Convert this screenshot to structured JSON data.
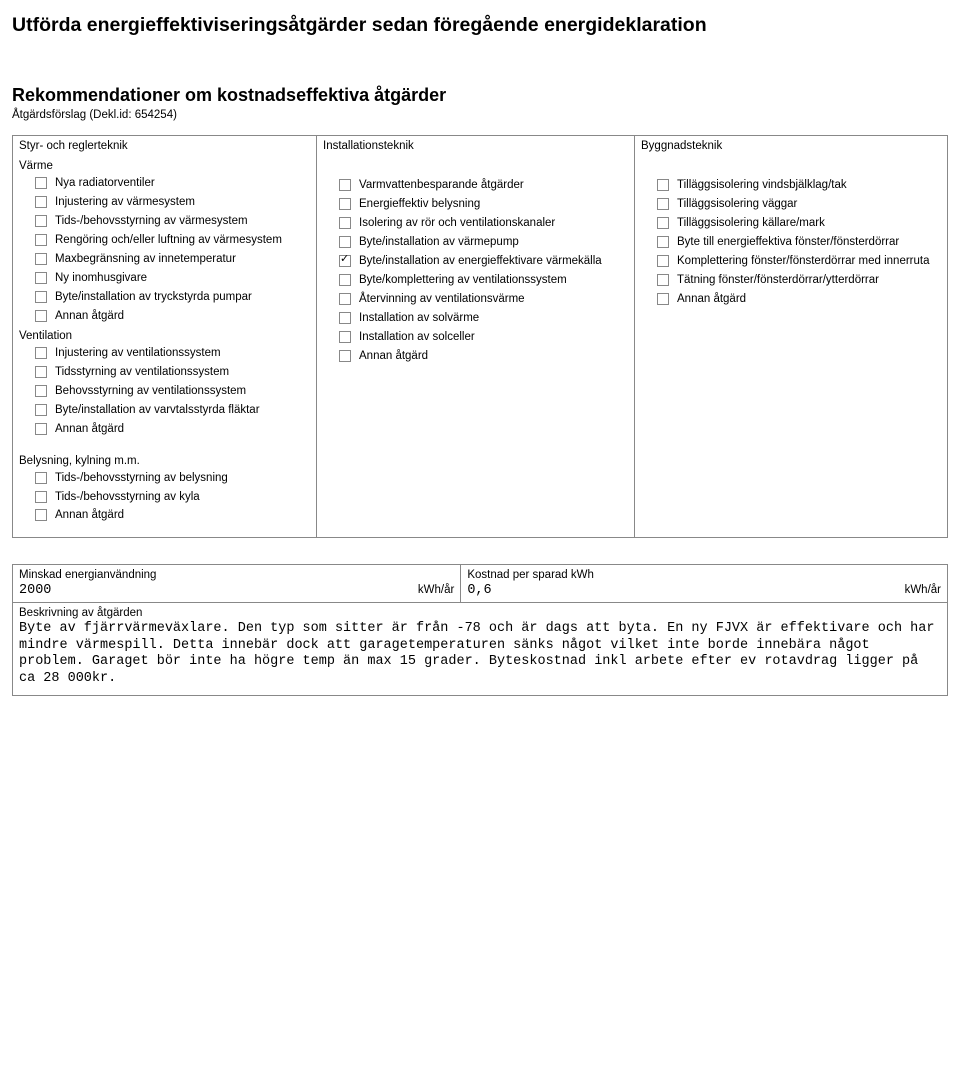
{
  "heading1": "Utförda energieffektiviseringsåtgärder sedan föregående energideklaration",
  "heading2": "Rekommendationer om kostnadseffektiva åtgärder",
  "forslag": "Åtgärdsförslag (Dekl.id: 654254)",
  "col1": {
    "title": "Styr- och reglerteknik",
    "group1_title": "Värme",
    "group1": [
      {
        "label": "Nya radiatorventiler",
        "checked": false
      },
      {
        "label": "Injustering av värmesystem",
        "checked": false
      },
      {
        "label": "Tids-/behovsstyrning av värmesystem",
        "checked": false
      },
      {
        "label": "Rengöring och/eller luftning av värmesystem",
        "checked": false
      },
      {
        "label": "Maxbegränsning av innetemperatur",
        "checked": false
      },
      {
        "label": "Ny inomhusgivare",
        "checked": false
      },
      {
        "label": "Byte/installation av tryckstyrda pumpar",
        "checked": false
      },
      {
        "label": "Annan åtgärd",
        "checked": false
      }
    ],
    "group2_title": "Ventilation",
    "group2": [
      {
        "label": "Injustering av ventilationssystem",
        "checked": false
      },
      {
        "label": "Tidsstyrning av ventilationssystem",
        "checked": false
      },
      {
        "label": "Behovsstyrning av ventilationssystem",
        "checked": false
      },
      {
        "label": "Byte/installation av varvtalsstyrda fläktar",
        "checked": false
      },
      {
        "label": "Annan åtgärd",
        "checked": false
      }
    ],
    "group3_title": "Belysning, kylning m.m.",
    "group3": [
      {
        "label": "Tids-/behovsstyrning av belysning",
        "checked": false
      },
      {
        "label": "Tids-/behovsstyrning av kyla",
        "checked": false
      },
      {
        "label": "Annan åtgärd",
        "checked": false
      }
    ]
  },
  "col2": {
    "title": "Installationsteknik",
    "items": [
      {
        "label": "Varmvattenbesparande åtgärder",
        "checked": false
      },
      {
        "label": "Energieffektiv belysning",
        "checked": false
      },
      {
        "label": "Isolering av rör och ventilationskanaler",
        "checked": false
      },
      {
        "label": "Byte/installation av värmepump",
        "checked": false
      },
      {
        "label": "Byte/installation av energieffektivare värmekälla",
        "checked": true
      },
      {
        "label": "Byte/komplettering av ventilationssystem",
        "checked": false
      },
      {
        "label": "Återvinning av ventilationsvärme",
        "checked": false
      },
      {
        "label": "Installation av solvärme",
        "checked": false
      },
      {
        "label": "Installation av solceller",
        "checked": false
      },
      {
        "label": "Annan åtgärd",
        "checked": false
      }
    ]
  },
  "col3": {
    "title": "Byggnadsteknik",
    "items": [
      {
        "label": "Tilläggsisolering vindsbjälklag/tak",
        "checked": false
      },
      {
        "label": "Tilläggsisolering väggar",
        "checked": false
      },
      {
        "label": "Tilläggsisolering källare/mark",
        "checked": false
      },
      {
        "label": "Byte till energieffektiva fönster/fönsterdörrar",
        "checked": false
      },
      {
        "label": "Komplettering fönster/fönsterdörrar med innerruta",
        "checked": false
      },
      {
        "label": "Tätning fönster/fönsterdörrar/ytterdörrar",
        "checked": false
      },
      {
        "label": "Annan åtgärd",
        "checked": false
      }
    ]
  },
  "bottom": {
    "left_label": "Minskad energianvändning",
    "left_value": "2000",
    "left_unit": "kWh/år",
    "right_label": "Kostnad per sparad kWh",
    "right_value": "0,6",
    "right_unit": "kWh/år",
    "desc_label": "Beskrivning av åtgärden",
    "desc_text": "Byte av fjärrvärmeväxlare. Den typ som sitter är från -78 och är dags att byta. En ny FJVX är effektivare och har mindre värmespill. Detta innebär dock att garagetemperaturen sänks något vilket inte borde innebära något problem. Garaget bör inte ha högre temp än max 15 grader. Byteskostnad inkl arbete efter ev rotavdrag ligger på ca 28 000kr."
  }
}
